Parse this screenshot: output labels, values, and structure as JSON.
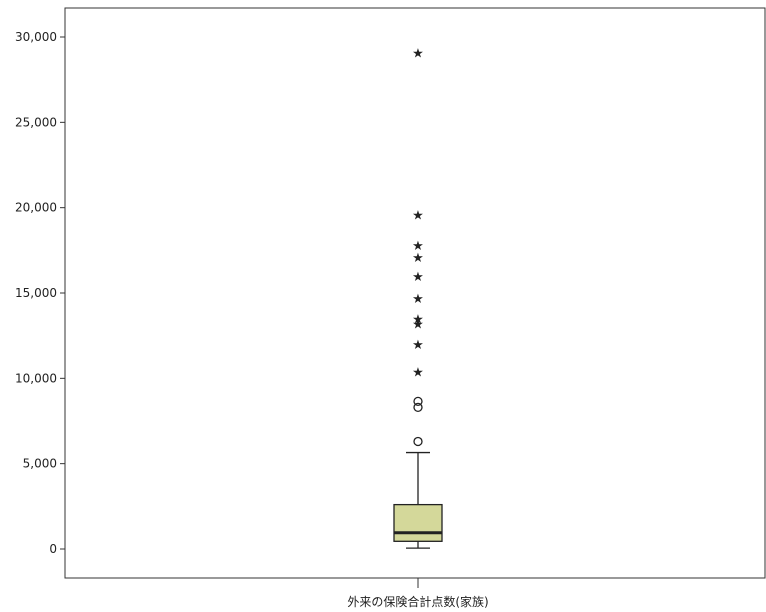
{
  "chart_data": {
    "type": "boxplot",
    "category": "外来の保険合計点数(家族)",
    "ylim": [
      -1700,
      31700
    ],
    "y_ticks": [
      0,
      5000,
      10000,
      15000,
      20000,
      25000,
      30000
    ],
    "y_tick_labels": [
      "0",
      "5,000",
      "10,000",
      "15,000",
      "20,000",
      "25,000",
      "30,000"
    ],
    "box": {
      "whisker_low": 50,
      "q1": 450,
      "median": 950,
      "q3": 2600,
      "whisker_high": 5650
    },
    "outliers": [
      6300,
      8300,
      8650
    ],
    "extremes": [
      10400,
      12000,
      13200,
      13500,
      14700,
      16000,
      17100,
      17800,
      19600,
      29100
    ],
    "box_fill": "#d4d89a",
    "line_color": "#222222"
  }
}
